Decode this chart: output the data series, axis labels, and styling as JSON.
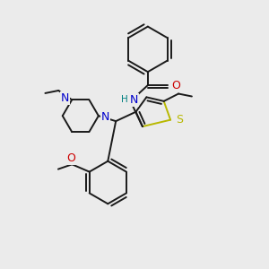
{
  "bg_color": "#ebebeb",
  "bond_color": "#1a1a1a",
  "S_color": "#b8b800",
  "N_color": "#0000cc",
  "O_color": "#cc0000",
  "H_color": "#008080",
  "lw": 1.4,
  "fig_size": [
    3.0,
    3.0
  ],
  "dpi": 100,
  "xlim": [
    0,
    10
  ],
  "ylim": [
    0,
    10
  ]
}
